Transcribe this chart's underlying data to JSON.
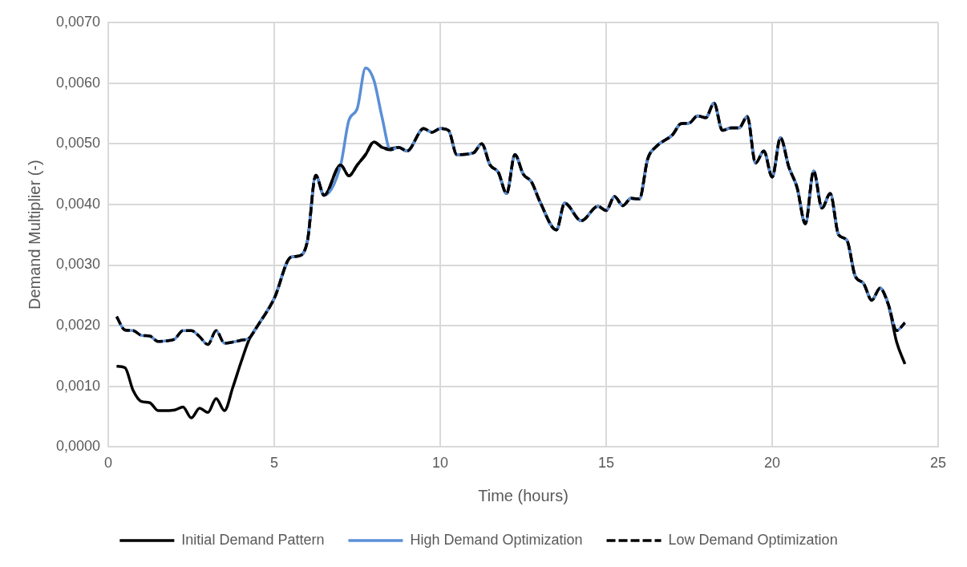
{
  "chart_data": {
    "type": "line",
    "xlabel": "Time (hours)",
    "ylabel": "Demand Multiplier (-)",
    "x": [
      0.25,
      0.5,
      0.75,
      1.0,
      1.25,
      1.5,
      1.75,
      2.0,
      2.25,
      2.5,
      2.75,
      3.0,
      3.25,
      3.5,
      3.75,
      4.0,
      4.25,
      4.5,
      5.0,
      5.5,
      5.75,
      6.0,
      6.25,
      6.5,
      7.0,
      7.25,
      7.5,
      7.75,
      8.0,
      8.25,
      8.5,
      8.75,
      9.0,
      9.5,
      9.75,
      10.0,
      10.25,
      10.5,
      11.0,
      11.25,
      11.5,
      11.75,
      12.0,
      12.25,
      12.5,
      12.75,
      13.0,
      13.5,
      13.75,
      14.25,
      14.75,
      15.0,
      15.25,
      15.5,
      15.75,
      16.0,
      16.25,
      16.5,
      17.0,
      17.25,
      17.5,
      17.75,
      18.0,
      18.25,
      18.5,
      18.75,
      19.0,
      19.25,
      19.5,
      19.75,
      20.0,
      20.25,
      20.5,
      20.75,
      21.0,
      21.25,
      21.5,
      21.75,
      22.0,
      22.25,
      22.5,
      22.75,
      23.0,
      23.25,
      23.5,
      23.75,
      24.0
    ],
    "series": [
      {
        "name": "Initial Demand Pattern",
        "color": "#000000",
        "line_style": "solid",
        "values": [
          0.00133,
          0.00131,
          0.00093,
          0.00075,
          0.00073,
          0.0006,
          0.0006,
          0.00061,
          0.00066,
          0.00048,
          0.00064,
          0.00057,
          0.0008,
          0.0006,
          0.00098,
          0.0014,
          0.00178,
          0.002,
          0.00245,
          0.00313,
          0.00315,
          0.0034,
          0.00448,
          0.00415,
          0.00465,
          0.00447,
          0.00465,
          0.00482,
          0.00503,
          0.00494,
          0.00492,
          0.00494,
          0.00488,
          0.00525,
          0.00519,
          0.00525,
          0.00522,
          0.00482,
          0.00485,
          0.005,
          0.00465,
          0.00453,
          0.00418,
          0.00482,
          0.0045,
          0.00437,
          0.00405,
          0.00358,
          0.00402,
          0.00373,
          0.00397,
          0.0039,
          0.00413,
          0.00398,
          0.0041,
          0.00409,
          0.00475,
          0.00495,
          0.00515,
          0.00533,
          0.00534,
          0.00546,
          0.00543,
          0.00567,
          0.00522,
          0.00526,
          0.00526,
          0.00545,
          0.00468,
          0.00488,
          0.00445,
          0.0051,
          0.00462,
          0.00428,
          0.00368,
          0.00455,
          0.00394,
          0.00418,
          0.0035,
          0.00341,
          0.00282,
          0.0027,
          0.00242,
          0.00262,
          0.00235,
          0.00173,
          0.00137
        ]
      },
      {
        "name": "High Demand Optimization",
        "color": "#5b8fd6",
        "line_style": "solid",
        "values": [
          0.00215,
          0.00193,
          0.00192,
          0.00184,
          0.00183,
          0.00174,
          0.00175,
          0.00178,
          0.00192,
          0.00192,
          0.00182,
          0.00169,
          0.00192,
          0.00171,
          0.00173,
          0.00176,
          0.0018,
          0.002,
          0.00245,
          0.00313,
          0.00315,
          0.0034,
          0.00448,
          0.00415,
          0.00465,
          0.00539,
          0.00558,
          0.00625,
          0.00605,
          0.00543,
          0.0049,
          0.00494,
          0.00488,
          0.00525,
          0.00519,
          0.00525,
          0.00522,
          0.00482,
          0.00485,
          0.005,
          0.00465,
          0.00453,
          0.00418,
          0.00482,
          0.0045,
          0.00437,
          0.00405,
          0.00358,
          0.00402,
          0.00373,
          0.00397,
          0.0039,
          0.00413,
          0.00398,
          0.0041,
          0.00409,
          0.00475,
          0.00495,
          0.00515,
          0.00533,
          0.00534,
          0.00546,
          0.00543,
          0.00567,
          0.00522,
          0.00526,
          0.00526,
          0.00545,
          0.00468,
          0.00488,
          0.00445,
          0.0051,
          0.00462,
          0.00428,
          0.00368,
          0.00455,
          0.00394,
          0.00418,
          0.0035,
          0.00341,
          0.00282,
          0.0027,
          0.00242,
          0.00262,
          0.00235,
          0.00192,
          0.00205
        ]
      },
      {
        "name": "Low Demand Optimization",
        "color": "#000000",
        "line_style": "dashed",
        "values": [
          0.00215,
          0.00193,
          0.00192,
          0.00184,
          0.00183,
          0.00174,
          0.00175,
          0.00178,
          0.00192,
          0.00192,
          0.00182,
          0.00169,
          0.00192,
          0.00171,
          0.00173,
          0.00176,
          0.0018,
          0.002,
          0.00245,
          0.00313,
          0.00315,
          0.0034,
          0.00448,
          0.00415,
          0.00465,
          0.00447,
          0.00465,
          0.00482,
          0.00503,
          0.00494,
          0.0049,
          0.00494,
          0.00488,
          0.00525,
          0.00519,
          0.00525,
          0.00522,
          0.00482,
          0.00485,
          0.005,
          0.00465,
          0.00453,
          0.00418,
          0.00482,
          0.0045,
          0.00437,
          0.00405,
          0.00358,
          0.00402,
          0.00373,
          0.00397,
          0.0039,
          0.00413,
          0.00398,
          0.0041,
          0.00409,
          0.00475,
          0.00495,
          0.00515,
          0.00533,
          0.00534,
          0.00546,
          0.00543,
          0.00567,
          0.00522,
          0.00526,
          0.00526,
          0.00545,
          0.00468,
          0.00488,
          0.00445,
          0.0051,
          0.00462,
          0.00428,
          0.00368,
          0.00455,
          0.00394,
          0.00418,
          0.0035,
          0.00341,
          0.00282,
          0.0027,
          0.00242,
          0.00262,
          0.00235,
          0.00192,
          0.00205
        ]
      }
    ],
    "xlim": [
      0,
      25
    ],
    "xticks": [
      0,
      5,
      10,
      15,
      20,
      25
    ],
    "ylim": [
      0,
      0.007
    ],
    "yticks": [
      {
        "value": 0,
        "label": "0,0000"
      },
      {
        "value": 0.001,
        "label": "0,0010"
      },
      {
        "value": 0.002,
        "label": "0,0020"
      },
      {
        "value": 0.003,
        "label": "0,0030"
      },
      {
        "value": 0.004,
        "label": "0,0040"
      },
      {
        "value": 0.005,
        "label": "0,0050"
      },
      {
        "value": 0.006,
        "label": "0,0060"
      },
      {
        "value": 0.007,
        "label": "0,0070"
      }
    ],
    "grid": true,
    "legend": "bottom",
    "marker": "none"
  }
}
